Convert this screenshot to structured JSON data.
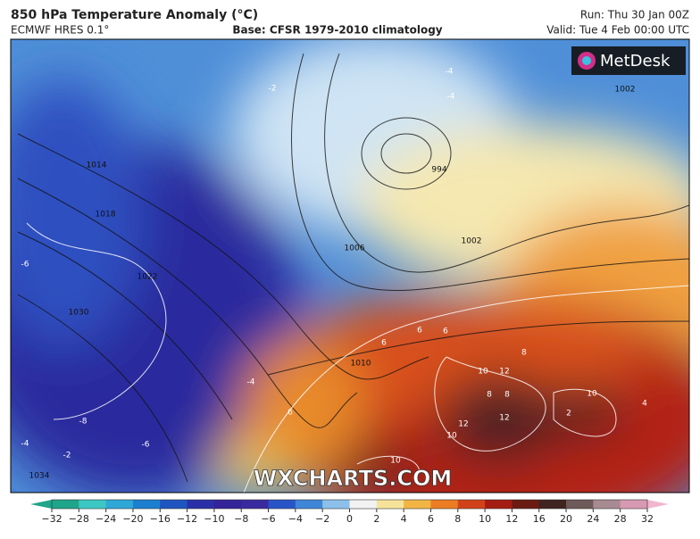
{
  "header": {
    "title": "850 hPa Temperature Anomaly (°C)",
    "model": "ECMWF HRES 0.1°",
    "base": "Base: CFSR 1979-2010 climatology",
    "run": "Run: Thu 30 Jan 00Z",
    "valid": "Valid: Tue 4 Feb 00:00 UTC"
  },
  "logo": "MetDesk",
  "watermark": "WXCHARTS.COM",
  "map_labels": [
    "1014",
    "1018",
    "1022",
    "1030",
    "1034",
    "994",
    "1002",
    "1006",
    "1010",
    "1002",
    "-6",
    "-8",
    "-6",
    "-4",
    "-2",
    "-4",
    "6",
    "6",
    "6",
    "6",
    "8",
    "10",
    "12",
    "8",
    "8",
    "10",
    "12",
    "10",
    "12",
    "2",
    "4",
    "10",
    "-4",
    "-2",
    "-4"
  ],
  "colorbar": {
    "ticks": [
      "−32",
      "−28",
      "−24",
      "−20",
      "−16",
      "−12",
      "−10",
      "−8",
      "−6",
      "−4",
      "−2",
      "0",
      "2",
      "4",
      "6",
      "8",
      "10",
      "12",
      "16",
      "20",
      "24",
      "28",
      "32"
    ],
    "colors": [
      "#1fa58a",
      "#3cc7c4",
      "#2fa8d8",
      "#1c7fd0",
      "#1f55c0",
      "#2a2fa8",
      "#35239a",
      "#3a2aa0",
      "#2854c8",
      "#3f86d8",
      "#8cc0ea",
      "#f2f2f2",
      "#f6e39a",
      "#f2b544",
      "#ec7d22",
      "#d2421a",
      "#a51d12",
      "#6a1b12",
      "#3f2420",
      "#6e5a58",
      "#a88a92",
      "#d79ab0",
      "#f0b6d0"
    ]
  }
}
